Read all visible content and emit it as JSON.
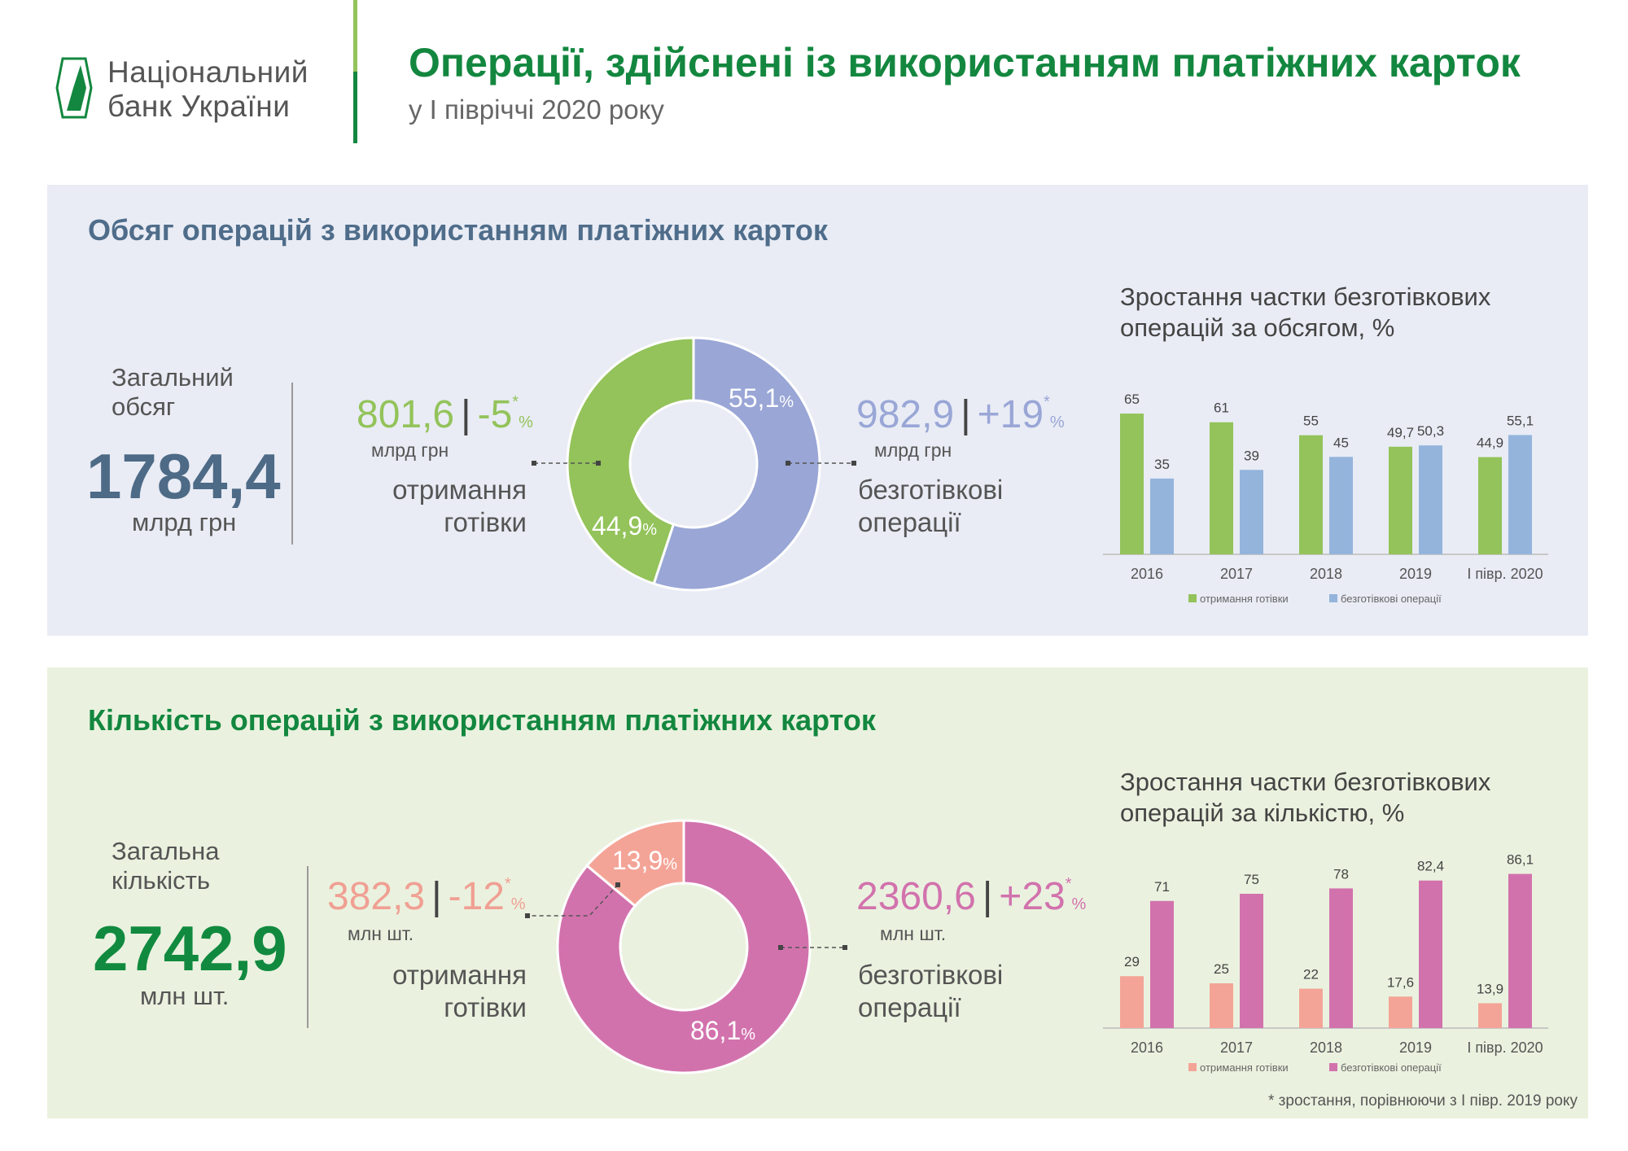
{
  "header": {
    "logo_line1": "Національний",
    "logo_line2": "банк України",
    "title": "Операції, здійснені із використанням платіжних карток",
    "subtitle": "у І півріччі 2020 року"
  },
  "colors": {
    "brand_green": "#13873f",
    "cash_volume": "#93c35a",
    "cashless_volume": "#99a6d6",
    "cash_count": "#f4a497",
    "cashless_count": "#d272ad",
    "bar_cashless_volume": "#94b4dc"
  },
  "volume": {
    "heading": "Обсяг операцій з використанням платіжних карток",
    "total_label_1": "Загальний",
    "total_label_2": "обсяг",
    "total_value": "1784,4",
    "total_unit": "млрд грн",
    "cash": {
      "value": "801,6",
      "sep": "|",
      "change": "-5",
      "star": "*",
      "pct": "%",
      "unit": "млрд грн",
      "label_1": "отримання",
      "label_2": "готівки"
    },
    "cashless": {
      "value": "982,9",
      "sep": "|",
      "change": "+19",
      "star": "*",
      "pct": "%",
      "unit": "млрд грн",
      "label_1": "безготівкові",
      "label_2": "операції"
    },
    "chart_title_1": "Зростання частки безготівкових",
    "chart_title_2": "операцій за обсягом, %"
  },
  "count": {
    "heading": "Кількість операцій з використанням платіжних карток",
    "total_label_1": "Загальна",
    "total_label_2": "кількість",
    "total_value": "2742,9",
    "total_unit": "млн шт.",
    "cash": {
      "value": "382,3",
      "sep": "|",
      "change": "-12",
      "star": "*",
      "pct": "%",
      "unit": "млн шт.",
      "label_1": "отримання",
      "label_2": "готівки"
    },
    "cashless": {
      "value": "2360,6",
      "sep": "|",
      "change": "+23",
      "star": "*",
      "pct": "%",
      "unit": "млн шт.",
      "label_1": "безготівкові",
      "label_2": "операції"
    },
    "chart_title_1": "Зростання частки безготівкових",
    "chart_title_2": "операцій за кількістю, %"
  },
  "footnote": "* зростання, порівнюючи з І півр. 2019 року",
  "chart_data": [
    {
      "type": "pie",
      "variant": "donut",
      "labels": [
        "безготівкові операції",
        "отримання готівки"
      ],
      "values": [
        55.1,
        44.9
      ],
      "value_labels": [
        "55,1",
        "44,9"
      ],
      "unit": "%",
      "colors": [
        "#99a6d6",
        "#93c35a"
      ]
    },
    {
      "type": "bar",
      "categories": [
        "2016",
        "2017",
        "2018",
        "2019",
        "І півр. 2020"
      ],
      "series": [
        {
          "name": "отримання готівки",
          "values": [
            65,
            61,
            55,
            49.7,
            44.9
          ],
          "color": "#93c35a"
        },
        {
          "name": "безготівкові операції",
          "values": [
            35,
            39,
            45,
            50.3,
            55.1
          ],
          "color": "#94b4dc"
        }
      ],
      "ylim": [
        0,
        100
      ],
      "grid": false,
      "legend": "bottom"
    },
    {
      "type": "pie",
      "variant": "donut",
      "labels": [
        "безготівкові операції",
        "отримання готівки"
      ],
      "values": [
        86.1,
        13.9
      ],
      "value_labels": [
        "86,1",
        "13,9"
      ],
      "unit": "%",
      "colors": [
        "#d272ad",
        "#f4a497"
      ]
    },
    {
      "type": "bar",
      "categories": [
        "2016",
        "2017",
        "2018",
        "2019",
        "І півр. 2020"
      ],
      "series": [
        {
          "name": "отримання готівки",
          "values": [
            29,
            25,
            22,
            17.6,
            13.9
          ],
          "color": "#f4a497"
        },
        {
          "name": "безготівкові операції",
          "values": [
            71,
            75,
            78,
            82.4,
            86.1
          ],
          "color": "#d272ad"
        }
      ],
      "ylim": [
        0,
        100
      ],
      "grid": false,
      "legend": "bottom"
    }
  ]
}
